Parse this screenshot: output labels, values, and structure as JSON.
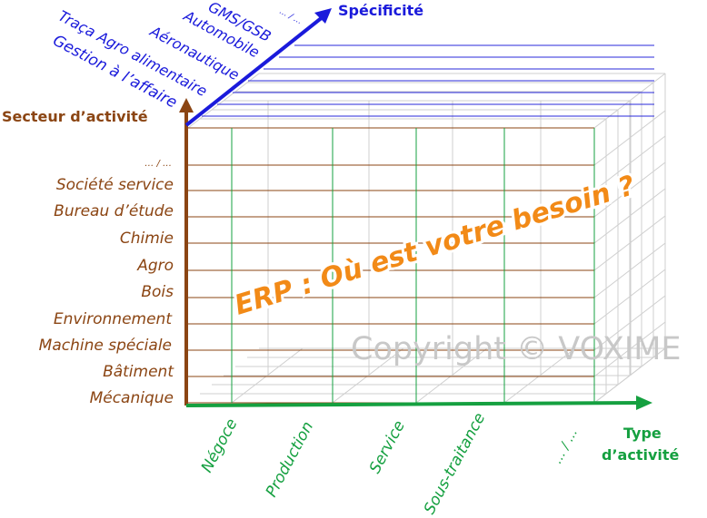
{
  "axes": {
    "sector": {
      "label": "Secteur d’activité",
      "color": "#8B4513"
    },
    "specificity": {
      "label": "Spécificité",
      "color": "#1a1adb"
    },
    "activity_type": {
      "label_line1": "Type",
      "label_line2": "d’activité",
      "color": "#15a040"
    }
  },
  "sectors": [
    "Mécanique",
    "Bâtiment",
    "Machine spéciale",
    "Environnement",
    "Bois",
    "Agro",
    "Chimie",
    "Bureau d’étude",
    "Société  service",
    "… / …"
  ],
  "specificities": [
    "Gestion à l’affaire",
    "Traça Agro alimentaire",
    "Aéronautique",
    "Automobile",
    "GMS/GSB",
    "… / …"
  ],
  "activity_types": [
    "Négoce",
    "Production",
    "Service",
    "Sous-traitance",
    "… / …"
  ],
  "headline": {
    "text": "ERP  :  Où est votre besoin ?",
    "color": "#f28a17"
  },
  "watermark": "Copyright © VOXIME",
  "colors": {
    "grid_depth": "#cfcfcf",
    "sector_grid": "#8B4513",
    "specificity_grid": "#2a2adb",
    "activity_grid": "#15a040"
  }
}
